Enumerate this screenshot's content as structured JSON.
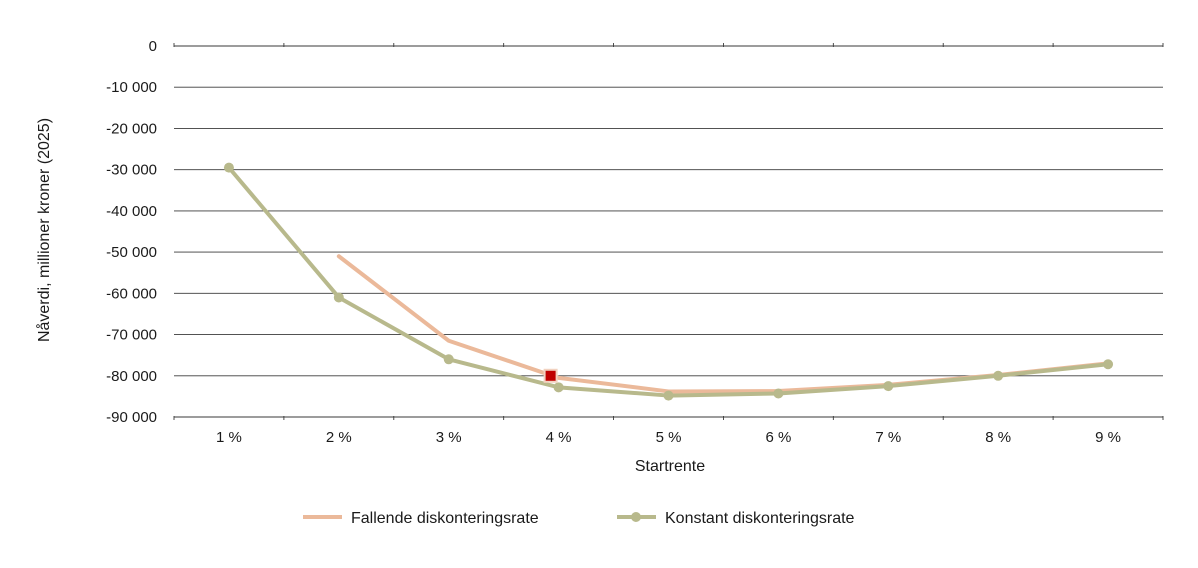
{
  "chart_data": {
    "type": "line",
    "xlabel": "Startrente",
    "ylabel": "Nåverdi, millioner kroner (2025)",
    "categories": [
      "1 %",
      "2 %",
      "3 %",
      "4 %",
      "5 %",
      "6 %",
      "7 %",
      "8 %",
      "9 %"
    ],
    "yticks": [
      "0",
      "-10 000",
      "-20 000",
      "-30 000",
      "-40 000",
      "-50 000",
      "-60 000",
      "-70 000",
      "-80 000",
      "-90 000"
    ],
    "ylim": [
      -90000,
      0
    ],
    "grid": true,
    "legend_position": "bottom",
    "series": [
      {
        "name": "Fallende diskonteringsrate",
        "color": "#ebb99a",
        "marker": "none",
        "values": [
          null,
          -51000,
          -71500,
          -80500,
          -83800,
          -83700,
          -82200,
          -79800,
          -77000
        ]
      },
      {
        "name": "Konstant diskonteringsrate",
        "color": "#b8b98c",
        "marker": "circle",
        "values": [
          -29500,
          -61000,
          -76000,
          -82800,
          -84800,
          -84300,
          -82500,
          -80000,
          -77200
        ]
      }
    ],
    "highlight_marker": {
      "series": "Fallende diskonteringsrate",
      "category": "4 %",
      "value": -80000,
      "color": "#c00000"
    }
  }
}
